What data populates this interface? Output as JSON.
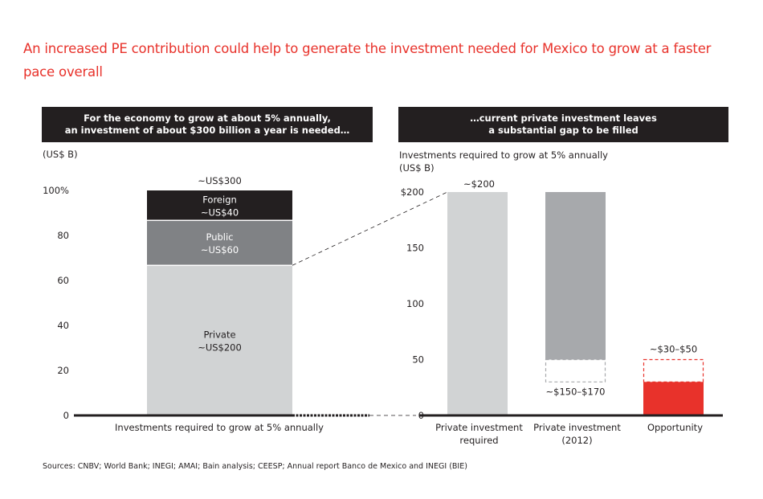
{
  "title": "An increased PE contribution could help to generate the investment needed for Mexico to grow at a faster pace overall",
  "source": "Sources: CNBV; World Bank; INEGI; AMAI; Bain analysis; CEESP; Annual report Banco de Mexico and INEGI (BIE)",
  "colors": {
    "title": "#e8322b",
    "header_bg": "#231f20",
    "foreign": "#231f20",
    "public": "#808285",
    "private_light": "#d1d3d4",
    "private_2012": "#a7a9ac",
    "opportunity": "#e8322b"
  },
  "chart_data": [
    {
      "type": "bar",
      "stacked": true,
      "header_line1": "For the economy to grow at about 5% annually,",
      "header_line2": "an investment of about $300 billion a year is needed…",
      "unit_label": "(US$ B)",
      "ylim": [
        0,
        100
      ],
      "yticks": [
        "0",
        "20",
        "40",
        "60",
        "80",
        "100%"
      ],
      "ytick_values": [
        0,
        20,
        40,
        60,
        80,
        100
      ],
      "categories": [
        "Investments required to grow at 5% annually"
      ],
      "total_label": "~US$300",
      "series": [
        {
          "name": "Private",
          "label": "~US$200",
          "value_usd_b": 200,
          "share_pct": 66.7
        },
        {
          "name": "Public",
          "label": "~US$60",
          "value_usd_b": 60,
          "share_pct": 20.0
        },
        {
          "name": "Foreign",
          "label": "~US$40",
          "value_usd_b": 40,
          "share_pct": 13.3
        }
      ]
    },
    {
      "type": "bar",
      "header_line1": "…current private investment leaves",
      "header_line2": "a substantial gap to be filled",
      "subtitle": "Investments required to grow at 5% annually",
      "unit_label": "(US$ B)",
      "ylim": [
        0,
        200
      ],
      "yticks": [
        "0",
        "50",
        "100",
        "150",
        "$200"
      ],
      "ytick_values": [
        0,
        50,
        100,
        150,
        200
      ],
      "categories": [
        {
          "line1": "Private investment",
          "line2": "required"
        },
        {
          "line1": "Private investment",
          "line2": "(2012)"
        },
        {
          "line1": "Opportunity",
          "line2": ""
        }
      ],
      "bars": [
        {
          "name": "Private investment required",
          "value": 200,
          "label": "~$200"
        },
        {
          "name": "Private investment (2012)",
          "solid_range": [
            50,
            200
          ],
          "dashed_range": [
            30,
            50
          ],
          "label": "~$150–$170"
        },
        {
          "name": "Opportunity",
          "solid_range": [
            0,
            30
          ],
          "dashed_range": [
            30,
            50
          ],
          "label": "~$30–$50"
        }
      ]
    }
  ]
}
